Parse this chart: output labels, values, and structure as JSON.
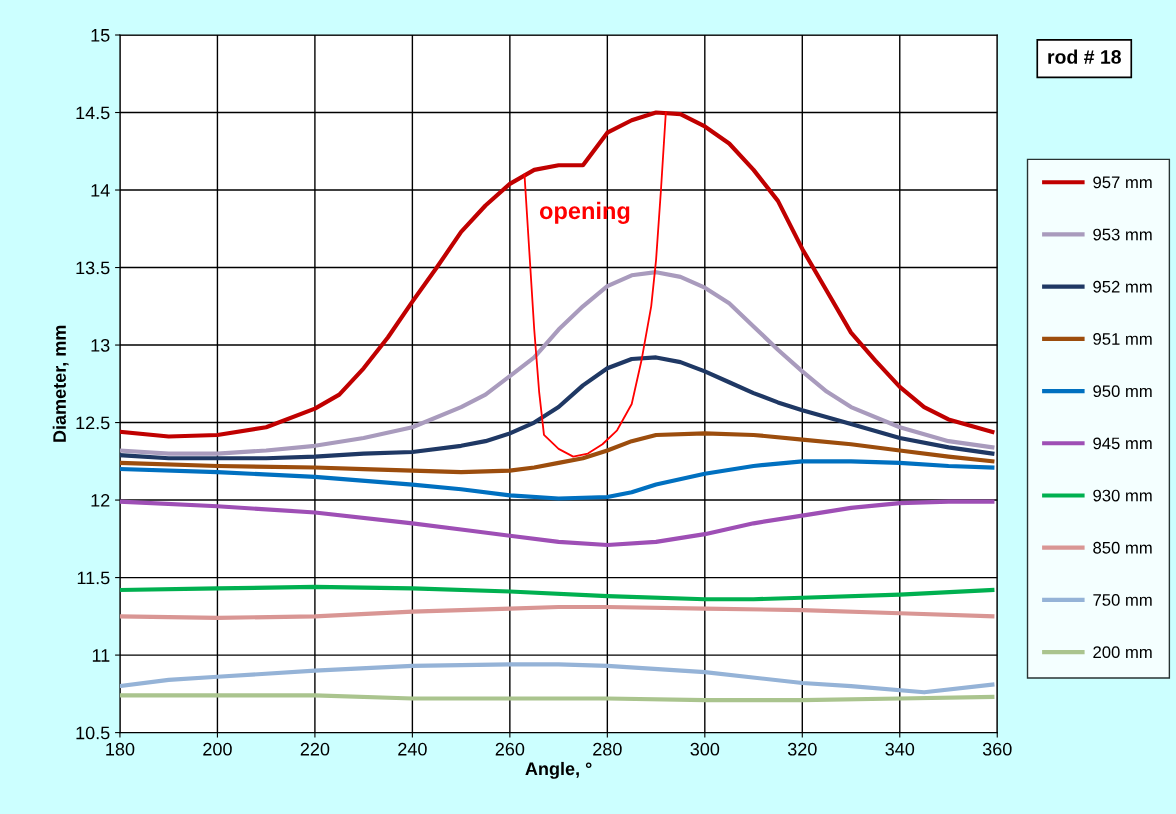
{
  "chart_data": {
    "type": "line",
    "xlabel": "Angle, °",
    "ylabel": "Diameter, mm",
    "xlim": [
      180,
      360
    ],
    "xticks": [
      180,
      200,
      220,
      240,
      260,
      280,
      300,
      320,
      340,
      360
    ],
    "ylim": [
      10.5,
      15
    ],
    "yticks": [
      10.5,
      11,
      11.5,
      12,
      12.5,
      13,
      13.5,
      14,
      14.5,
      15
    ],
    "grid": true,
    "legend": "right",
    "marker": "none",
    "line_style": "solid",
    "annotations": [
      "rod # 18",
      "opening"
    ],
    "series": [
      {
        "name": "957 mm",
        "color": "#c00000",
        "x": [
          180,
          190,
          200,
          210,
          220,
          225,
          230,
          235,
          240,
          245,
          250,
          255,
          260,
          265,
          270,
          275,
          280,
          285,
          290,
          295,
          300,
          305,
          310,
          315,
          320,
          325,
          330,
          335,
          340,
          345,
          350,
          359
        ],
        "values": [
          12.44,
          12.41,
          12.42,
          12.47,
          12.59,
          12.68,
          12.85,
          13.05,
          13.28,
          13.5,
          13.73,
          13.9,
          14.04,
          14.13,
          14.16,
          14.16,
          14.37,
          14.45,
          14.5,
          14.49,
          14.41,
          14.3,
          14.13,
          13.93,
          13.62,
          13.35,
          13.08,
          12.9,
          12.73,
          12.6,
          12.52,
          12.44
        ]
      },
      {
        "name": "953 mm",
        "color": "#a99bbd",
        "x": [
          180,
          190,
          200,
          210,
          220,
          230,
          240,
          250,
          255,
          260,
          265,
          270,
          275,
          280,
          285,
          290,
          295,
          300,
          305,
          310,
          315,
          320,
          325,
          330,
          340,
          350,
          359
        ],
        "values": [
          12.32,
          12.3,
          12.3,
          12.32,
          12.35,
          12.4,
          12.47,
          12.6,
          12.68,
          12.8,
          12.92,
          13.1,
          13.25,
          13.38,
          13.45,
          13.47,
          13.44,
          13.37,
          13.27,
          13.12,
          12.97,
          12.83,
          12.7,
          12.6,
          12.47,
          12.38,
          12.34
        ]
      },
      {
        "name": "952 mm",
        "color": "#1f3864",
        "x": [
          180,
          190,
          200,
          210,
          220,
          230,
          240,
          250,
          255,
          260,
          265,
          270,
          275,
          280,
          285,
          290,
          295,
          300,
          305,
          310,
          315,
          320,
          330,
          340,
          350,
          359
        ],
        "values": [
          12.29,
          12.27,
          12.27,
          12.27,
          12.28,
          12.3,
          12.31,
          12.35,
          12.38,
          12.43,
          12.5,
          12.6,
          12.74,
          12.85,
          12.91,
          12.92,
          12.89,
          12.83,
          12.76,
          12.69,
          12.63,
          12.58,
          12.49,
          12.4,
          12.34,
          12.3
        ]
      },
      {
        "name": "951 mm",
        "color": "#9c4d0d",
        "x": [
          180,
          200,
          220,
          230,
          240,
          250,
          260,
          265,
          270,
          275,
          280,
          285,
          290,
          300,
          310,
          320,
          330,
          340,
          350,
          359
        ],
        "values": [
          12.24,
          12.22,
          12.21,
          12.2,
          12.19,
          12.18,
          12.19,
          12.21,
          12.24,
          12.27,
          12.32,
          12.38,
          12.42,
          12.43,
          12.42,
          12.39,
          12.36,
          12.32,
          12.28,
          12.25
        ]
      },
      {
        "name": "950 mm",
        "color": "#0070c0",
        "x": [
          180,
          200,
          220,
          240,
          250,
          260,
          270,
          280,
          285,
          290,
          300,
          310,
          320,
          330,
          340,
          350,
          359
        ],
        "values": [
          12.2,
          12.18,
          12.15,
          12.1,
          12.07,
          12.03,
          12.01,
          12.02,
          12.05,
          12.1,
          12.17,
          12.22,
          12.25,
          12.25,
          12.24,
          12.22,
          12.21
        ]
      },
      {
        "name": "945 mm",
        "color": "#9e4fb5",
        "x": [
          180,
          200,
          220,
          240,
          250,
          260,
          270,
          280,
          290,
          300,
          310,
          320,
          330,
          340,
          350,
          359
        ],
        "values": [
          11.99,
          11.96,
          11.92,
          11.85,
          11.81,
          11.77,
          11.73,
          11.71,
          11.73,
          11.78,
          11.85,
          11.9,
          11.95,
          11.98,
          11.99,
          11.99
        ]
      },
      {
        "name": "930 mm",
        "color": "#00b050",
        "x": [
          180,
          200,
          220,
          240,
          260,
          280,
          300,
          310,
          320,
          340,
          359
        ],
        "values": [
          11.42,
          11.43,
          11.44,
          11.43,
          11.41,
          11.38,
          11.36,
          11.36,
          11.37,
          11.39,
          11.42
        ]
      },
      {
        "name": "850 mm",
        "color": "#d99694",
        "x": [
          180,
          200,
          220,
          240,
          260,
          270,
          280,
          300,
          320,
          340,
          359
        ],
        "values": [
          11.25,
          11.24,
          11.25,
          11.28,
          11.3,
          11.31,
          11.31,
          11.3,
          11.29,
          11.27,
          11.25
        ]
      },
      {
        "name": "750 mm",
        "color": "#95b3d7",
        "x": [
          180,
          190,
          200,
          220,
          240,
          260,
          270,
          280,
          300,
          320,
          330,
          345,
          359
        ],
        "values": [
          10.8,
          10.84,
          10.86,
          10.9,
          10.93,
          10.94,
          10.94,
          10.93,
          10.89,
          10.82,
          10.8,
          10.76,
          10.81
        ]
      },
      {
        "name": "200 mm",
        "color": "#aac48e",
        "x": [
          180,
          200,
          220,
          240,
          260,
          280,
          300,
          320,
          340,
          359
        ],
        "values": [
          10.74,
          10.74,
          10.74,
          10.72,
          10.72,
          10.72,
          10.71,
          10.71,
          10.72,
          10.73
        ]
      },
      {
        "color": "#ff0000",
        "x": [
          263,
          264,
          265,
          266,
          267,
          270,
          273,
          276,
          279,
          282,
          285,
          287,
          289,
          290,
          291,
          292
        ],
        "values": [
          14.1,
          13.6,
          13.1,
          12.7,
          12.42,
          12.33,
          12.28,
          12.3,
          12.36,
          12.45,
          12.62,
          12.9,
          13.25,
          13.55,
          14.0,
          14.5
        ]
      }
    ]
  }
}
